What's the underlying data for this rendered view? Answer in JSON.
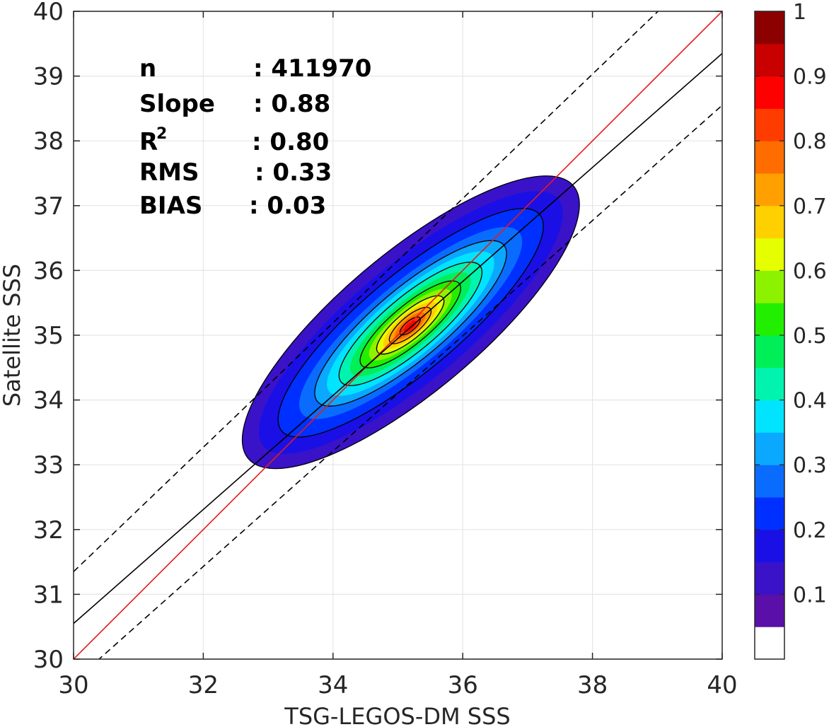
{
  "chart_data": {
    "type": "contour",
    "xlabel": "TSG-LEGOS-DM SSS",
    "ylabel": "Satellite SSS",
    "xlim": [
      30,
      40
    ],
    "ylim": [
      30,
      40
    ],
    "xticks": [
      "30",
      "32",
      "34",
      "36",
      "38",
      "40"
    ],
    "yticks": [
      "30",
      "31",
      "32",
      "33",
      "34",
      "35",
      "36",
      "37",
      "38",
      "39",
      "40"
    ],
    "grid": true,
    "stats": [
      {
        "label": "n",
        "value": ": 411970"
      },
      {
        "label": "Slope",
        "value": ": 0.88"
      },
      {
        "label": "R",
        "sup": "2",
        "value": ": 0.80"
      },
      {
        "label": "RMS",
        "value": ": 0.33"
      },
      {
        "label": "BIAS",
        "value": ": 0.03"
      }
    ],
    "density_center": {
      "x": 35.2,
      "y": 35.2
    },
    "contour_levels": [
      0.1,
      0.2,
      0.3,
      0.4,
      0.5,
      0.6,
      0.7,
      0.8,
      0.9
    ],
    "lines": [
      {
        "role": "one-to-one",
        "color": "#e41a1c",
        "style": "solid",
        "x": [
          30,
          40
        ],
        "y": [
          30,
          40
        ]
      },
      {
        "role": "fit",
        "color": "#000000",
        "style": "solid",
        "x": [
          30,
          40
        ],
        "y": [
          30.55,
          39.35
        ]
      },
      {
        "role": "fit-upper",
        "color": "#000000",
        "style": "dashed",
        "x": [
          30,
          40
        ],
        "y": [
          31.35,
          40.95
        ]
      },
      {
        "role": "fit-lower",
        "color": "#000000",
        "style": "dashed",
        "x": [
          30,
          40
        ],
        "y": [
          29.65,
          38.55
        ]
      }
    ],
    "colorbar": {
      "range": [
        0,
        1
      ],
      "ticks": [
        "0.1",
        "0.2",
        "0.3",
        "0.4",
        "0.5",
        "0.6",
        "0.7",
        "0.8",
        "0.9",
        "1"
      ],
      "colors": [
        "#ffffff",
        "#5a0fa8",
        "#3a12c8",
        "#1a10e6",
        "#0030ff",
        "#0a6cff",
        "#0aa8ff",
        "#00e4ff",
        "#00f4b0",
        "#00ee58",
        "#22ee00",
        "#8cf200",
        "#e6ff00",
        "#ffd000",
        "#ffa000",
        "#ff6c00",
        "#ff3c00",
        "#ff0000",
        "#c80000",
        "#8c0000"
      ]
    }
  }
}
